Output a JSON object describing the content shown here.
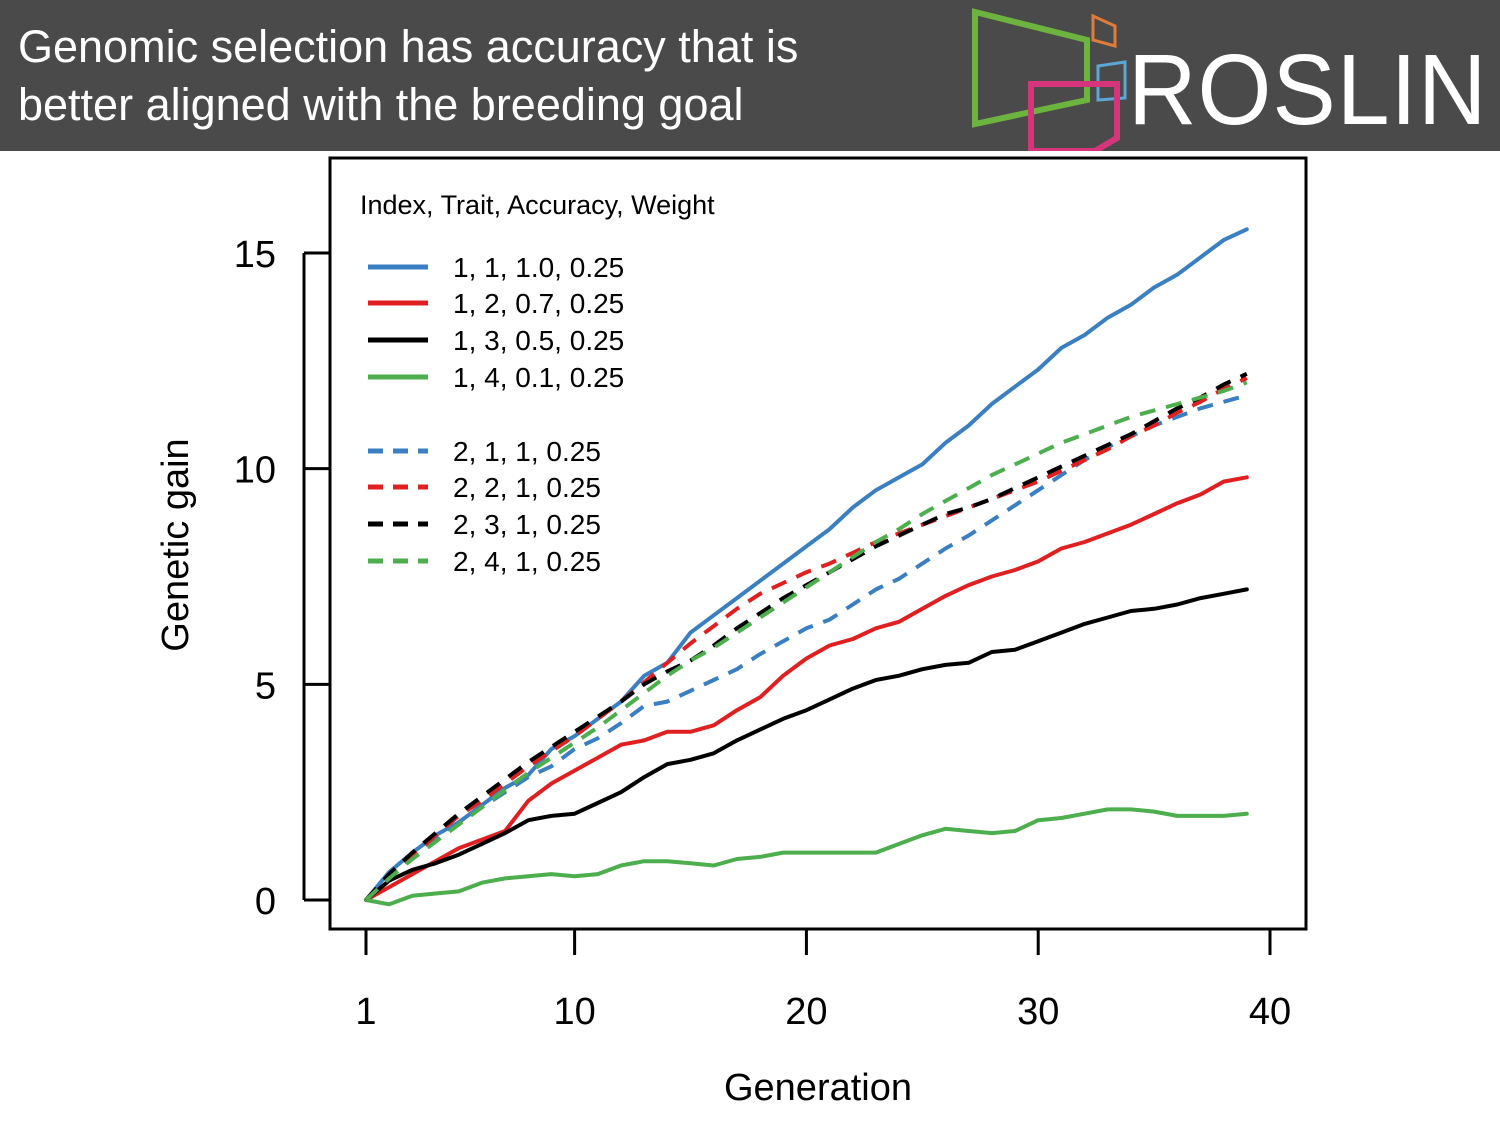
{
  "header": {
    "title_line1": "Genomic selection has accuracy that is",
    "title_line2": "better aligned with the breeding goal",
    "logo_text": "ROSLIN",
    "background": "#4a4a4a",
    "logo_colors": {
      "green": "#6db33f",
      "orange": "#e07b39",
      "blue": "#5aa7d8",
      "magenta": "#d6357c"
    }
  },
  "chart_data": {
    "type": "line",
    "xlabel": "Generation",
    "ylabel": "Genetic gain",
    "xlim": [
      1,
      40
    ],
    "ylim": [
      0,
      15
    ],
    "xticks": [
      1,
      10,
      20,
      30,
      40
    ],
    "yticks": [
      0,
      5,
      10,
      15
    ],
    "legend_title": "Index, Trait, Accuracy, Weight",
    "legend_position": "top-left",
    "grid": false,
    "x": [
      1,
      2,
      3,
      4,
      5,
      6,
      7,
      8,
      9,
      10,
      11,
      12,
      13,
      14,
      15,
      16,
      17,
      18,
      19,
      20,
      21,
      22,
      23,
      24,
      25,
      26,
      27,
      28,
      29,
      30,
      31,
      32,
      33,
      34,
      35,
      36,
      37,
      38,
      39
    ],
    "series": [
      {
        "name": "1, 1, 1.0, 0.25",
        "color": "#3a7fc1",
        "dash": false,
        "values": [
          0,
          0.65,
          1.1,
          1.5,
          1.8,
          2.2,
          2.6,
          2.9,
          3.5,
          3.8,
          4.2,
          4.6,
          5.2,
          5.5,
          6.2,
          6.6,
          7.0,
          7.4,
          7.8,
          8.2,
          8.6,
          9.1,
          9.5,
          9.8,
          10.1,
          10.6,
          11.0,
          11.5,
          11.9,
          12.3,
          12.8,
          13.1,
          13.5,
          13.8,
          14.2,
          14.5,
          14.9,
          15.3,
          15.55
        ]
      },
      {
        "name": "1, 2, 0.7, 0.25",
        "color": "#e02020",
        "dash": false,
        "values": [
          0,
          0.3,
          0.6,
          0.9,
          1.2,
          1.4,
          1.6,
          2.3,
          2.7,
          3.0,
          3.3,
          3.6,
          3.7,
          3.9,
          3.9,
          4.05,
          4.4,
          4.7,
          5.2,
          5.6,
          5.9,
          6.05,
          6.3,
          6.45,
          6.75,
          7.05,
          7.3,
          7.5,
          7.65,
          7.85,
          8.15,
          8.3,
          8.5,
          8.7,
          8.95,
          9.2,
          9.4,
          9.7,
          9.8
        ]
      },
      {
        "name": "1, 3, 0.5, 0.25",
        "color": "#000000",
        "dash": false,
        "values": [
          0,
          0.45,
          0.7,
          0.85,
          1.05,
          1.3,
          1.55,
          1.85,
          1.95,
          2.0,
          2.25,
          2.5,
          2.85,
          3.15,
          3.25,
          3.4,
          3.7,
          3.95,
          4.2,
          4.4,
          4.65,
          4.9,
          5.1,
          5.2,
          5.35,
          5.45,
          5.5,
          5.75,
          5.8,
          6.0,
          6.2,
          6.4,
          6.55,
          6.7,
          6.75,
          6.85,
          7.0,
          7.1,
          7.2
        ]
      },
      {
        "name": "1, 4, 0.1, 0.25",
        "color": "#4cae4c",
        "dash": false,
        "values": [
          0,
          -0.1,
          0.1,
          0.15,
          0.2,
          0.4,
          0.5,
          0.55,
          0.6,
          0.55,
          0.6,
          0.8,
          0.9,
          0.9,
          0.85,
          0.8,
          0.95,
          1.0,
          1.1,
          1.1,
          1.1,
          1.1,
          1.1,
          1.3,
          1.5,
          1.65,
          1.6,
          1.55,
          1.6,
          1.85,
          1.9,
          2.0,
          2.1,
          2.1,
          2.05,
          1.95,
          1.95,
          1.95,
          2.0
        ]
      },
      {
        "name": "2, 1, 1, 0.25",
        "color": "#3a7fc1",
        "dash": true,
        "values": [
          0,
          0.6,
          1.0,
          1.45,
          1.8,
          2.15,
          2.5,
          2.85,
          3.1,
          3.5,
          3.75,
          4.1,
          4.5,
          4.6,
          4.85,
          5.1,
          5.35,
          5.7,
          6.0,
          6.3,
          6.5,
          6.85,
          7.2,
          7.45,
          7.8,
          8.15,
          8.45,
          8.8,
          9.15,
          9.5,
          9.85,
          10.2,
          10.5,
          10.75,
          11.0,
          11.2,
          11.4,
          11.55,
          11.7
        ]
      },
      {
        "name": "2, 2, 1, 0.25",
        "color": "#e02020",
        "dash": true,
        "values": [
          0,
          0.55,
          1.0,
          1.5,
          1.95,
          2.3,
          2.7,
          3.1,
          3.45,
          3.8,
          4.2,
          4.6,
          5.05,
          5.5,
          5.95,
          6.35,
          6.75,
          7.1,
          7.35,
          7.6,
          7.8,
          8.05,
          8.3,
          8.5,
          8.7,
          8.9,
          9.1,
          9.3,
          9.5,
          9.7,
          9.95,
          10.2,
          10.45,
          10.75,
          11.0,
          11.3,
          11.55,
          11.85,
          12.1
        ]
      },
      {
        "name": "2, 3, 1, 0.25",
        "color": "#000000",
        "dash": true,
        "values": [
          0,
          0.6,
          1.1,
          1.55,
          2.0,
          2.4,
          2.8,
          3.2,
          3.55,
          3.9,
          4.25,
          4.6,
          5.0,
          5.3,
          5.55,
          5.9,
          6.3,
          6.65,
          7.0,
          7.3,
          7.6,
          7.9,
          8.2,
          8.45,
          8.7,
          8.95,
          9.1,
          9.3,
          9.55,
          9.8,
          10.05,
          10.3,
          10.55,
          10.8,
          11.1,
          11.4,
          11.65,
          11.95,
          12.2
        ]
      },
      {
        "name": "2, 4, 1, 0.25",
        "color": "#4cae4c",
        "dash": true,
        "values": [
          0,
          0.5,
          0.95,
          1.35,
          1.75,
          2.15,
          2.55,
          2.95,
          3.3,
          3.65,
          4.0,
          4.4,
          4.8,
          5.2,
          5.55,
          5.85,
          6.2,
          6.55,
          6.9,
          7.25,
          7.6,
          7.95,
          8.3,
          8.6,
          8.95,
          9.25,
          9.55,
          9.85,
          10.1,
          10.35,
          10.6,
          10.8,
          11.0,
          11.2,
          11.35,
          11.5,
          11.65,
          11.8,
          12.0
        ]
      }
    ]
  }
}
